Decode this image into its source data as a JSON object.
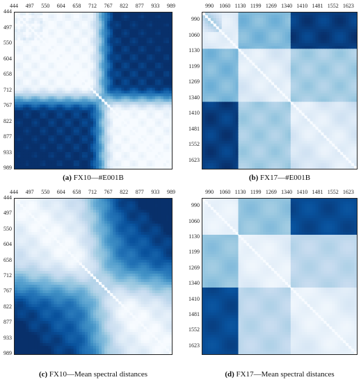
{
  "chart_data": [
    {
      "type": "heatmap",
      "panel_letter": "(a)",
      "caption": "FX10—#E001B",
      "x_ticks": [
        "444",
        "497",
        "550",
        "604",
        "658",
        "712",
        "767",
        "822",
        "877",
        "933",
        "989"
      ],
      "y_ticks": [
        "444",
        "497",
        "550",
        "604",
        "658",
        "712",
        "767",
        "822",
        "877",
        "933",
        "989"
      ],
      "colormap": "Blues",
      "colors": {
        "low": "#f7fbff",
        "high": "#08306b"
      },
      "description_blocks": [
        {
          "x": [
            767,
            989
          ],
          "y": [
            444,
            767
          ],
          "intensity": 0.85
        },
        {
          "x": [
            444,
            767
          ],
          "y": [
            767,
            989
          ],
          "intensity": 0.85
        }
      ]
    },
    {
      "type": "heatmap",
      "panel_letter": "(b)",
      "caption": "FX17—#E001B",
      "x_ticks": [
        "990",
        "1060",
        "1130",
        "1199",
        "1269",
        "1340",
        "1410",
        "1481",
        "1552",
        "1623"
      ],
      "y_ticks": [
        "990",
        "1060",
        "1130",
        "1199",
        "1269",
        "1340",
        "1410",
        "1481",
        "1552",
        "1623"
      ],
      "colormap": "Blues",
      "colors": {
        "low": "#f7fbff",
        "high": "#08306b"
      }
    },
    {
      "type": "heatmap",
      "panel_letter": "(c)",
      "caption": "FX10—Mean spectral distances",
      "x_ticks": [
        "444",
        "497",
        "550",
        "604",
        "658",
        "712",
        "767",
        "822",
        "877",
        "933",
        "989"
      ],
      "y_ticks": [
        "444",
        "497",
        "550",
        "604",
        "658",
        "712",
        "767",
        "822",
        "877",
        "933",
        "989"
      ],
      "colormap": "Blues",
      "colors": {
        "low": "#f7fbff",
        "high": "#08306b"
      }
    },
    {
      "type": "heatmap",
      "panel_letter": "(d)",
      "caption": "FX17—Mean spectral distances",
      "x_ticks": [
        "990",
        "1060",
        "1130",
        "1199",
        "1269",
        "1340",
        "1410",
        "1481",
        "1552",
        "1623"
      ],
      "y_ticks": [
        "990",
        "1060",
        "1130",
        "1199",
        "1269",
        "1340",
        "1410",
        "1481",
        "1552",
        "1623"
      ],
      "colormap": "Blues",
      "colors": {
        "low": "#f7fbff",
        "high": "#08306b"
      }
    }
  ]
}
